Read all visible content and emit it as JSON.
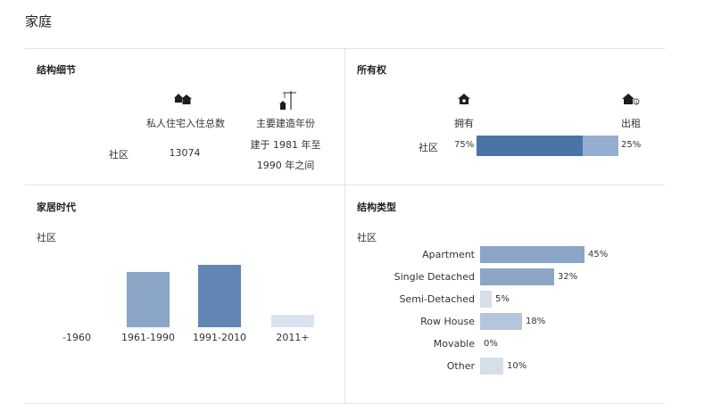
{
  "page": {
    "title": "家庭"
  },
  "structure_details": {
    "title": "结构细节",
    "col1_header": "私人住宅入住总数",
    "col2_header": "主要建造年份",
    "row_label": "社区",
    "col1_value": "13074",
    "col2_value_line1": "建于 1981 年至",
    "col2_value_line2": "1990 年之间",
    "icons": [
      "houses-icon",
      "construction-crane-icon"
    ]
  },
  "ownership": {
    "title": "所有权",
    "own_label": "拥有",
    "rent_label": "出租",
    "row_label": "社区",
    "own_pct_label": "75%",
    "rent_pct_label": "25%",
    "own_pct": 75,
    "rent_pct": 25,
    "colors": {
      "own": "#4a74a6",
      "rent": "#94add0"
    },
    "icons": [
      "house-key-icon",
      "house-dollar-icon"
    ]
  },
  "home_age": {
    "title": "家居时代",
    "subtitle": "社区",
    "chart_data": {
      "type": "bar",
      "categories": [
        "-1960",
        "1961-1990",
        "1991-2010",
        "2011+"
      ],
      "values": [
        0,
        30,
        34,
        7
      ],
      "colors": [
        "#8aa5c6",
        "#8aa5c6",
        "#6385b3",
        "#dbe3ee"
      ]
    }
  },
  "structure_type": {
    "title": "结构类型",
    "subtitle": "社区",
    "chart_data": {
      "type": "bar",
      "orientation": "horizontal",
      "categories": [
        "Apartment",
        "Single Detached",
        "Semi-Detached",
        "Row House",
        "Movable",
        "Other"
      ],
      "values": [
        45,
        32,
        5,
        18,
        0,
        10
      ],
      "value_labels": [
        "45%",
        "32%",
        "5%",
        "18%",
        "0%",
        "10%"
      ],
      "colors": [
        "#8aa5c6",
        "#8aa5c6",
        "#d6deea",
        "#b5c6dc",
        "#d6deea",
        "#d6deea"
      ]
    }
  }
}
